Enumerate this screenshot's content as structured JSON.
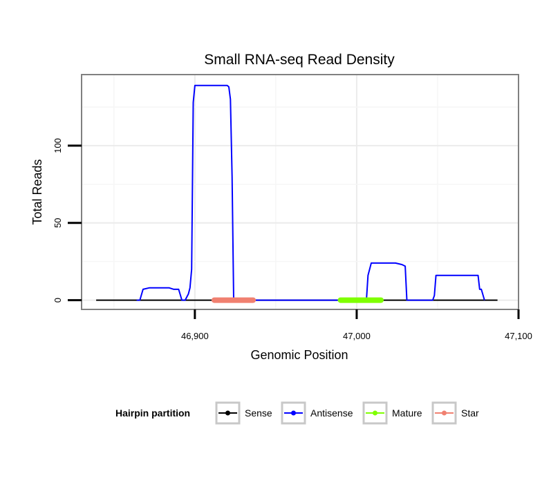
{
  "chart_data": {
    "type": "line",
    "title": "Small RNA-seq Read Density",
    "xlabel": "Genomic Position",
    "ylabel": "Total Reads",
    "xlim": [
      46830,
      47100
    ],
    "ylim": [
      -6,
      146
    ],
    "x_ticks": [
      46900,
      47000,
      47100
    ],
    "x_tick_labels": [
      "46,900",
      "47,000",
      "47,100"
    ],
    "y_ticks": [
      0,
      50,
      100
    ],
    "y_tick_labels": [
      "0",
      "50",
      "100"
    ],
    "grid": true,
    "legend_title": "Hairpin partition",
    "legend_position": "bottom",
    "series": [
      {
        "name": "Sense",
        "color": "#000000",
        "x": [
          46839,
          47087
        ],
        "y": [
          0,
          0
        ]
      },
      {
        "name": "Antisense",
        "color": "#0000ff",
        "x": [
          46864,
          46866,
          46868,
          46872,
          46884,
          46887,
          46890,
          46892,
          46894,
          46896,
          46897,
          46898,
          46899,
          46900,
          46911,
          46920,
          46921,
          46922,
          46923,
          46924,
          47006,
          47007,
          47009,
          47024,
          47028,
          47030,
          47031,
          47047,
          47048,
          47049,
          47075,
          47076,
          47077,
          47079
        ],
        "y": [
          0,
          0,
          7,
          8,
          8,
          7,
          7,
          0,
          0,
          4,
          8,
          20,
          128,
          139,
          139,
          139,
          138,
          130,
          80,
          0,
          0,
          16,
          24,
          24,
          23,
          22,
          0,
          0,
          3,
          16,
          16,
          7,
          7,
          0
        ]
      },
      {
        "name": "Mature",
        "color": "#7fff00",
        "x": [
          46990,
          47015
        ],
        "y": [
          0,
          0
        ]
      },
      {
        "name": "Star",
        "color": "#f08070",
        "x": [
          46912,
          46936
        ],
        "y": [
          0,
          0
        ]
      }
    ]
  }
}
